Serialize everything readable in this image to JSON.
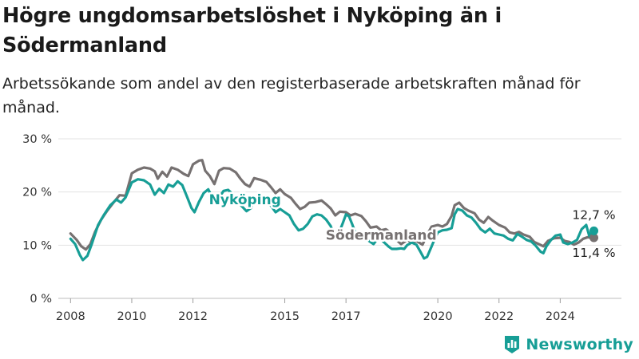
{
  "title": "Högre ungdomsarbetslöshet i Nyköping än i Södermanland",
  "subtitle": "Arbetssökande som andel av den registerbaserade arbetskraften månad för månad.",
  "brand": "Newsworthy",
  "chart_data": {
    "type": "line",
    "xlim": [
      2007.6,
      2026.0
    ],
    "ylim": [
      0,
      30
    ],
    "yticks": [
      {
        "v": 0,
        "label": "0 %"
      },
      {
        "v": 10,
        "label": "10 %"
      },
      {
        "v": 20,
        "label": "20 %"
      },
      {
        "v": 30,
        "label": "30 %"
      }
    ],
    "xticks": [
      {
        "v": 2008,
        "label": "2008"
      },
      {
        "v": 2010,
        "label": "2010"
      },
      {
        "v": 2012,
        "label": "2012"
      },
      {
        "v": 2015,
        "label": "2015"
      },
      {
        "v": 2017,
        "label": "2017"
      },
      {
        "v": 2020,
        "label": "2020"
      },
      {
        "v": 2022,
        "label": "2022"
      },
      {
        "v": 2024,
        "label": "2024"
      }
    ],
    "grid": true,
    "series": [
      {
        "name": "Södermanland",
        "color": "#767171",
        "end_label": "11,4 %",
        "points": [
          [
            2008.0,
            12.2
          ],
          [
            2008.2,
            11.0
          ],
          [
            2008.35,
            9.8
          ],
          [
            2008.5,
            9.2
          ],
          [
            2008.65,
            10.2
          ],
          [
            2008.8,
            12.5
          ],
          [
            2009.0,
            14.8
          ],
          [
            2009.2,
            16.5
          ],
          [
            2009.4,
            18.0
          ],
          [
            2009.6,
            19.4
          ],
          [
            2009.8,
            19.3
          ],
          [
            2010.0,
            23.5
          ],
          [
            2010.2,
            24.2
          ],
          [
            2010.4,
            24.6
          ],
          [
            2010.6,
            24.4
          ],
          [
            2010.75,
            23.9
          ],
          [
            2010.85,
            22.5
          ],
          [
            2011.0,
            23.8
          ],
          [
            2011.15,
            22.9
          ],
          [
            2011.3,
            24.6
          ],
          [
            2011.5,
            24.2
          ],
          [
            2011.7,
            23.4
          ],
          [
            2011.85,
            23.0
          ],
          [
            2012.0,
            25.2
          ],
          [
            2012.2,
            25.9
          ],
          [
            2012.3,
            26.0
          ],
          [
            2012.4,
            24.0
          ],
          [
            2012.55,
            23.0
          ],
          [
            2012.7,
            21.5
          ],
          [
            2012.85,
            24.0
          ],
          [
            2013.0,
            24.5
          ],
          [
            2013.2,
            24.4
          ],
          [
            2013.4,
            23.7
          ],
          [
            2013.55,
            22.5
          ],
          [
            2013.7,
            21.5
          ],
          [
            2013.85,
            21.0
          ],
          [
            2014.0,
            22.6
          ],
          [
            2014.2,
            22.3
          ],
          [
            2014.4,
            21.9
          ],
          [
            2014.55,
            20.9
          ],
          [
            2014.7,
            19.8
          ],
          [
            2014.85,
            20.5
          ],
          [
            2015.0,
            19.6
          ],
          [
            2015.2,
            18.9
          ],
          [
            2015.35,
            17.8
          ],
          [
            2015.5,
            16.8
          ],
          [
            2015.65,
            17.2
          ],
          [
            2015.8,
            18.0
          ],
          [
            2016.0,
            18.1
          ],
          [
            2016.2,
            18.4
          ],
          [
            2016.35,
            17.7
          ],
          [
            2016.5,
            16.9
          ],
          [
            2016.65,
            15.6
          ],
          [
            2016.8,
            16.3
          ],
          [
            2017.0,
            16.2
          ],
          [
            2017.15,
            15.6
          ],
          [
            2017.3,
            15.9
          ],
          [
            2017.5,
            15.5
          ],
          [
            2017.65,
            14.5
          ],
          [
            2017.8,
            13.3
          ],
          [
            2018.0,
            13.5
          ],
          [
            2018.15,
            12.8
          ],
          [
            2018.3,
            13.0
          ],
          [
            2018.5,
            12.2
          ],
          [
            2018.65,
            11.0
          ],
          [
            2018.8,
            10.2
          ],
          [
            2019.0,
            11.0
          ],
          [
            2019.15,
            10.5
          ],
          [
            2019.3,
            10.8
          ],
          [
            2019.5,
            10.1
          ],
          [
            2019.65,
            12.0
          ],
          [
            2019.8,
            13.5
          ],
          [
            2020.0,
            13.8
          ],
          [
            2020.15,
            13.5
          ],
          [
            2020.3,
            14.0
          ],
          [
            2020.45,
            15.5
          ],
          [
            2020.55,
            17.5
          ],
          [
            2020.7,
            18.0
          ],
          [
            2020.85,
            17.0
          ],
          [
            2021.0,
            16.5
          ],
          [
            2021.2,
            16.0
          ],
          [
            2021.35,
            14.8
          ],
          [
            2021.5,
            14.2
          ],
          [
            2021.65,
            15.3
          ],
          [
            2021.8,
            14.6
          ],
          [
            2022.0,
            13.8
          ],
          [
            2022.2,
            13.3
          ],
          [
            2022.35,
            12.4
          ],
          [
            2022.5,
            12.2
          ],
          [
            2022.65,
            12.5
          ],
          [
            2022.8,
            12.0
          ],
          [
            2023.0,
            11.6
          ],
          [
            2023.15,
            10.6
          ],
          [
            2023.3,
            10.2
          ],
          [
            2023.45,
            9.8
          ],
          [
            2023.6,
            10.8
          ],
          [
            2023.8,
            11.3
          ],
          [
            2024.0,
            11.4
          ],
          [
            2024.15,
            10.8
          ],
          [
            2024.3,
            10.6
          ],
          [
            2024.45,
            10.1
          ],
          [
            2024.6,
            10.5
          ],
          [
            2024.75,
            11.2
          ],
          [
            2024.9,
            11.5
          ],
          [
            2025.0,
            11.4
          ],
          [
            2025.1,
            11.4
          ]
        ]
      },
      {
        "name": "Nyköping",
        "color": "#179e96",
        "end_label": "12,7 %",
        "points": [
          [
            2008.0,
            11.2
          ],
          [
            2008.15,
            10.2
          ],
          [
            2008.3,
            8.2
          ],
          [
            2008.4,
            7.2
          ],
          [
            2008.55,
            8.0
          ],
          [
            2008.7,
            10.3
          ],
          [
            2008.9,
            13.8
          ],
          [
            2009.1,
            15.8
          ],
          [
            2009.3,
            17.5
          ],
          [
            2009.5,
            18.6
          ],
          [
            2009.65,
            18.0
          ],
          [
            2009.8,
            19.0
          ],
          [
            2010.0,
            21.8
          ],
          [
            2010.2,
            22.4
          ],
          [
            2010.4,
            22.2
          ],
          [
            2010.6,
            21.4
          ],
          [
            2010.75,
            19.5
          ],
          [
            2010.9,
            20.6
          ],
          [
            2011.05,
            19.8
          ],
          [
            2011.2,
            21.4
          ],
          [
            2011.35,
            21.0
          ],
          [
            2011.5,
            22.0
          ],
          [
            2011.65,
            21.3
          ],
          [
            2011.8,
            19.2
          ],
          [
            2011.95,
            17.0
          ],
          [
            2012.05,
            16.2
          ],
          [
            2012.2,
            18.2
          ],
          [
            2012.35,
            19.8
          ],
          [
            2012.5,
            20.5
          ],
          [
            2012.65,
            18.8
          ],
          [
            2012.8,
            18.5
          ],
          [
            2013.0,
            20.2
          ],
          [
            2013.15,
            20.4
          ],
          [
            2013.3,
            19.6
          ],
          [
            2013.45,
            18.2
          ],
          [
            2013.6,
            17.3
          ],
          [
            2013.75,
            16.4
          ],
          [
            2013.9,
            17.0
          ],
          [
            2014.0,
            18.5
          ],
          [
            2014.2,
            18.5
          ],
          [
            2014.4,
            18.0
          ],
          [
            2014.55,
            17.4
          ],
          [
            2014.7,
            16.2
          ],
          [
            2014.85,
            16.8
          ],
          [
            2015.0,
            16.2
          ],
          [
            2015.15,
            15.6
          ],
          [
            2015.3,
            14.0
          ],
          [
            2015.45,
            12.8
          ],
          [
            2015.6,
            13.1
          ],
          [
            2015.75,
            14.0
          ],
          [
            2015.9,
            15.4
          ],
          [
            2016.05,
            15.8
          ],
          [
            2016.2,
            15.6
          ],
          [
            2016.35,
            14.8
          ],
          [
            2016.5,
            13.6
          ],
          [
            2016.6,
            12.0
          ],
          [
            2016.75,
            12.0
          ],
          [
            2016.9,
            14.2
          ],
          [
            2017.0,
            15.8
          ],
          [
            2017.1,
            15.4
          ],
          [
            2017.2,
            14.0
          ],
          [
            2017.3,
            12.4
          ],
          [
            2017.4,
            11.8
          ],
          [
            2017.55,
            11.5
          ],
          [
            2017.7,
            11.0
          ],
          [
            2017.8,
            10.6
          ],
          [
            2017.9,
            10.2
          ],
          [
            2018.0,
            11.0
          ],
          [
            2018.1,
            11.4
          ],
          [
            2018.25,
            10.5
          ],
          [
            2018.4,
            9.7
          ],
          [
            2018.5,
            9.3
          ],
          [
            2018.65,
            9.3
          ],
          [
            2018.8,
            9.4
          ],
          [
            2018.9,
            9.3
          ],
          [
            2019.0,
            10.0
          ],
          [
            2019.15,
            10.5
          ],
          [
            2019.3,
            10.1
          ],
          [
            2019.45,
            8.6
          ],
          [
            2019.55,
            7.5
          ],
          [
            2019.65,
            7.8
          ],
          [
            2019.8,
            9.8
          ],
          [
            2019.9,
            11.2
          ],
          [
            2020.0,
            12.4
          ],
          [
            2020.15,
            12.8
          ],
          [
            2020.3,
            12.9
          ],
          [
            2020.45,
            13.2
          ],
          [
            2020.55,
            15.8
          ],
          [
            2020.65,
            16.8
          ],
          [
            2020.8,
            16.5
          ],
          [
            2020.95,
            15.6
          ],
          [
            2021.1,
            15.2
          ],
          [
            2021.25,
            14.2
          ],
          [
            2021.4,
            13.0
          ],
          [
            2021.55,
            12.4
          ],
          [
            2021.7,
            13.1
          ],
          [
            2021.85,
            12.2
          ],
          [
            2022.0,
            12.0
          ],
          [
            2022.15,
            11.8
          ],
          [
            2022.3,
            11.2
          ],
          [
            2022.45,
            10.9
          ],
          [
            2022.6,
            12.1
          ],
          [
            2022.75,
            11.6
          ],
          [
            2022.9,
            11.0
          ],
          [
            2023.05,
            10.7
          ],
          [
            2023.2,
            9.9
          ],
          [
            2023.35,
            8.8
          ],
          [
            2023.45,
            8.5
          ],
          [
            2023.55,
            9.8
          ],
          [
            2023.7,
            11.0
          ],
          [
            2023.85,
            11.8
          ],
          [
            2024.0,
            12.0
          ],
          [
            2024.1,
            10.5
          ],
          [
            2024.25,
            10.2
          ],
          [
            2024.4,
            10.5
          ],
          [
            2024.55,
            11.0
          ],
          [
            2024.7,
            13.0
          ],
          [
            2024.85,
            13.8
          ],
          [
            2024.95,
            11.7
          ],
          [
            2025.05,
            12.9
          ],
          [
            2025.1,
            12.7
          ]
        ]
      }
    ],
    "annotations": [
      {
        "text": "Nyköping",
        "series": "Nyköping",
        "x": 2013.7,
        "y": 17.7,
        "color": "#179e96"
      },
      {
        "text": "Södermanland",
        "series": "Södermanland",
        "x": 2018.15,
        "y": 11.0,
        "color": "#767171"
      }
    ]
  }
}
